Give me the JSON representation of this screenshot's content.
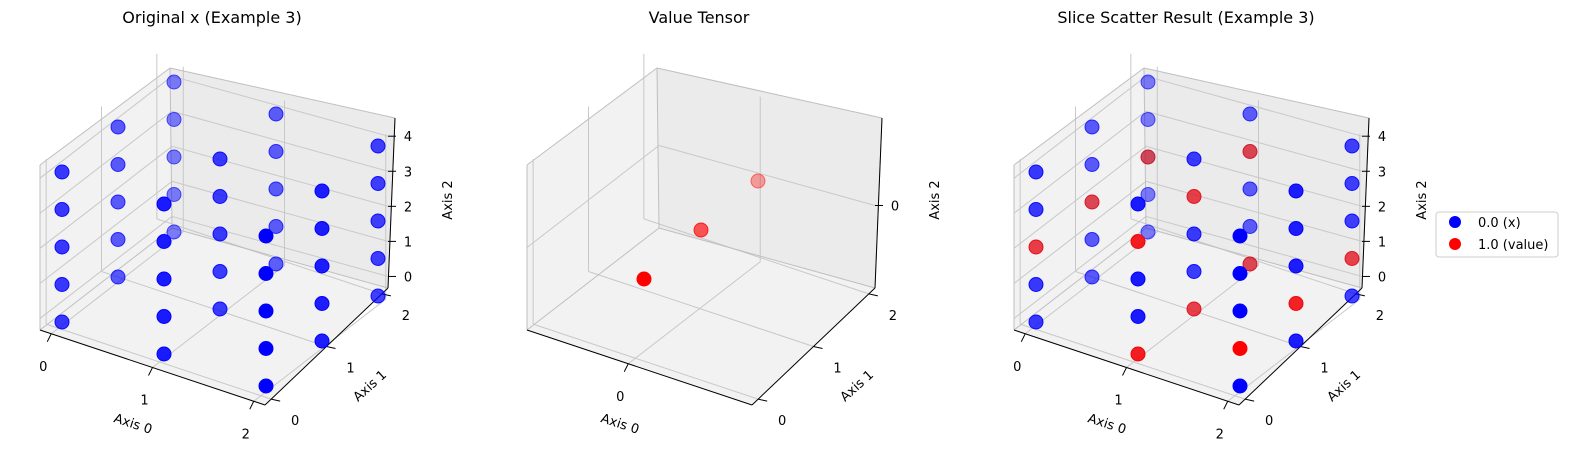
{
  "chart_data": [
    {
      "type": "scatter",
      "projection": "3d",
      "title": "Original x (Example 3)",
      "xlabel": "Axis 0",
      "ylabel": "Axis 1",
      "zlabel": "Axis 2",
      "x_ticks": [
        "0",
        "1",
        "2"
      ],
      "y_ticks": [
        "0",
        "1",
        "2"
      ],
      "z_ticks": [
        "0",
        "1",
        "2",
        "3",
        "4"
      ],
      "grid": true,
      "shape": [
        3,
        3,
        5
      ],
      "points": "all cells of a 3x3x5 grid",
      "point_color": "#0000ff",
      "point_value": 0.0
    },
    {
      "type": "scatter",
      "projection": "3d",
      "title": "Value Tensor",
      "xlabel": "Axis 0",
      "ylabel": "Axis 1",
      "zlabel": "Axis 2",
      "x_ticks": [
        "0"
      ],
      "y_ticks": [
        "0",
        "1",
        "2"
      ],
      "z_ticks": [
        "0"
      ],
      "grid": true,
      "points": [
        {
          "x": 0,
          "y": 0,
          "z": 0,
          "value": 1.0
        },
        {
          "x": 0,
          "y": 1,
          "z": 0,
          "value": 1.0
        },
        {
          "x": 0,
          "y": 2,
          "z": 0,
          "value": 1.0
        }
      ],
      "point_color": "#ff0000"
    },
    {
      "type": "scatter",
      "projection": "3d",
      "title": "Slice Scatter Result (Example 3)",
      "xlabel": "Axis 0",
      "ylabel": "Axis 1",
      "zlabel": "Axis 2",
      "x_ticks": [
        "0",
        "1",
        "2"
      ],
      "y_ticks": [
        "0",
        "1",
        "2"
      ],
      "z_ticks": [
        "0",
        "1",
        "2",
        "3",
        "4"
      ],
      "grid": true,
      "shape": [
        3,
        3,
        5
      ],
      "value_cells": [
        {
          "x": 1,
          "y": 0,
          "z": 0
        },
        {
          "x": 1,
          "y": 1,
          "z": 0
        },
        {
          "x": 1,
          "y": 2,
          "z": 0
        },
        {
          "x": 2,
          "y": 0,
          "z": 1
        },
        {
          "x": 2,
          "y": 1,
          "z": 1
        },
        {
          "x": 2,
          "y": 2,
          "z": 1
        },
        {
          "x": 0,
          "y": 0,
          "z": 2
        },
        {
          "x": 0,
          "y": 1,
          "z": 2
        },
        {
          "x": 0,
          "y": 2,
          "z": 2
        },
        {
          "x": 1,
          "y": 0,
          "z": 3
        },
        {
          "x": 1,
          "y": 1,
          "z": 3
        },
        {
          "x": 1,
          "y": 2,
          "z": 3
        }
      ],
      "colors": {
        "x": "#0000ff",
        "value": "#ff0000"
      },
      "legend": [
        {
          "label": "0.0 (x)",
          "color": "#0000ff"
        },
        {
          "label": "1.0 (value)",
          "color": "#ff0000"
        }
      ],
      "legend_position": "right"
    }
  ]
}
